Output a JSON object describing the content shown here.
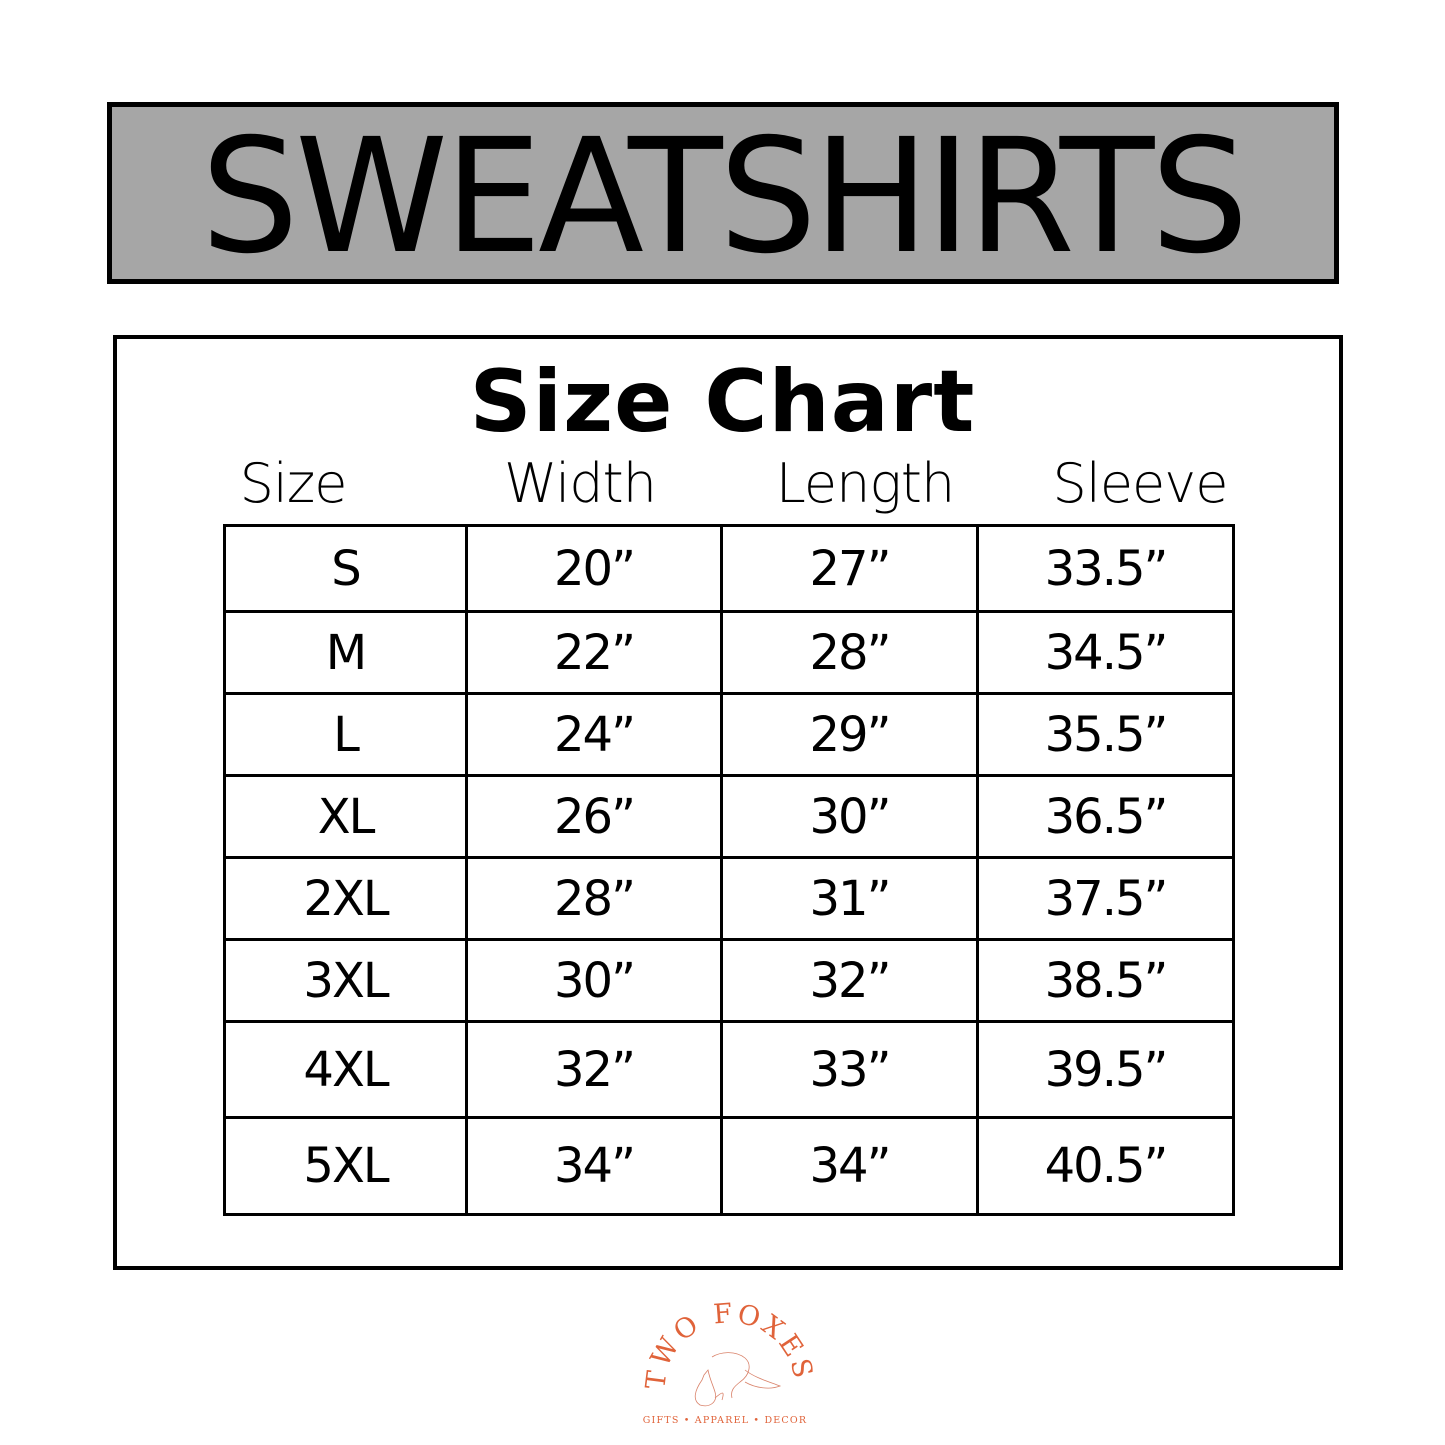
{
  "banner": {
    "title": "SWEATSHIRTS",
    "background": "#a6a6a6"
  },
  "size_chart": {
    "title": "Size Chart",
    "headers": [
      "Size",
      "Width",
      "Length",
      "Sleeve"
    ],
    "rows": [
      [
        "S",
        "20”",
        "27”",
        "33.5”"
      ],
      [
        "M",
        "22”",
        "28”",
        "34.5”"
      ],
      [
        "L",
        "24”",
        "29”",
        "35.5”"
      ],
      [
        "XL",
        "26”",
        "30”",
        "36.5”"
      ],
      [
        "2XL",
        "28”",
        "31”",
        "37.5”"
      ],
      [
        "3XL",
        "30”",
        "32”",
        "38.5”"
      ],
      [
        "4XL",
        "32”",
        "33”",
        "39.5”"
      ],
      [
        "5XL",
        "34”",
        "34”",
        "40.5”"
      ]
    ]
  },
  "logo": {
    "name": "TWO FOXES",
    "tagline": "GIFTS • APPAREL • DECOR",
    "color": "#e0633a"
  }
}
